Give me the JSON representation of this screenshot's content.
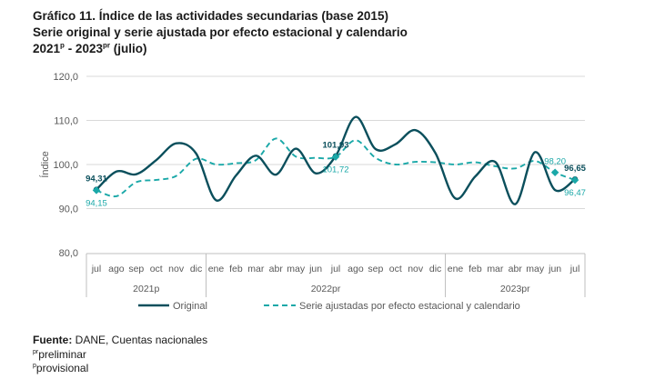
{
  "title": {
    "line1": "Gráfico 11. Índice de las actividades secundarias (base 2015)",
    "line2": "Serie original y serie ajustada por efecto estacional y calendario",
    "line3_a": "2021",
    "line3_sup_a": "p",
    "line3_b": " - 2023",
    "line3_sup_b": "pr",
    "line3_c": " (julio)"
  },
  "notes": {
    "source_label": "Fuente:",
    "source_text": " DANE, Cuentas nacionales",
    "pr_sup": "pr",
    "pr_text": "preliminar",
    "p_sup": "p",
    "p_text": "provisional"
  },
  "colors": {
    "original": "#0b4f5c",
    "adjusted": "#1aa8a8",
    "grid": "#d9d9d9",
    "axis_text": "#595959"
  },
  "chart_data": {
    "type": "line",
    "ylabel": "Índice",
    "ylim": [
      80,
      120
    ],
    "yticks": [
      "80,0",
      "90,0",
      "100,0",
      "110,0",
      "120,0"
    ],
    "categories": [
      "jul",
      "ago",
      "sep",
      "oct",
      "nov",
      "dic",
      "ene",
      "feb",
      "mar",
      "abr",
      "may",
      "jun",
      "jul",
      "ago",
      "sep",
      "oct",
      "nov",
      "dic",
      "ene",
      "feb",
      "mar",
      "abr",
      "may",
      "jun",
      "jul"
    ],
    "year_groups": [
      {
        "label": "2021p",
        "start": 0,
        "end": 5
      },
      {
        "label": "2022pr",
        "start": 6,
        "end": 17
      },
      {
        "label": "2023pr",
        "start": 18,
        "end": 24
      }
    ],
    "series": [
      {
        "name": "Original",
        "style": "solid",
        "values": [
          94.31,
          98.4,
          97.8,
          101.0,
          104.8,
          102.5,
          91.9,
          97.5,
          102.0,
          97.7,
          103.6,
          98.0,
          101.93,
          110.8,
          103.5,
          104.6,
          107.8,
          102.6,
          92.3,
          97.3,
          100.6,
          91.0,
          102.8,
          94.2,
          96.65
        ]
      },
      {
        "name": "Serie ajustadas por efecto estacional y calendario",
        "style": "dashed",
        "values": [
          94.15,
          92.8,
          96.0,
          96.5,
          97.4,
          101.3,
          100.0,
          100.3,
          101.0,
          105.9,
          101.8,
          101.5,
          101.72,
          105.5,
          101.5,
          100.0,
          100.6,
          100.5,
          100.0,
          100.5,
          99.6,
          99.1,
          100.8,
          98.2,
          96.47
        ]
      }
    ],
    "data_labels": [
      {
        "series": 0,
        "index": 0,
        "text": "94,31",
        "pos": "above"
      },
      {
        "series": 1,
        "index": 0,
        "text": "94,15",
        "pos": "below"
      },
      {
        "series": 0,
        "index": 12,
        "text": "101,93",
        "pos": "above"
      },
      {
        "series": 1,
        "index": 12,
        "text": "101,72",
        "pos": "below"
      },
      {
        "series": 1,
        "index": 23,
        "text": "98,20",
        "pos": "above"
      },
      {
        "series": 0,
        "index": 24,
        "text": "96,65",
        "pos": "above"
      },
      {
        "series": 1,
        "index": 24,
        "text": "96,47",
        "pos": "below"
      }
    ],
    "legend": {
      "placement": "bottom"
    },
    "grid": true
  }
}
